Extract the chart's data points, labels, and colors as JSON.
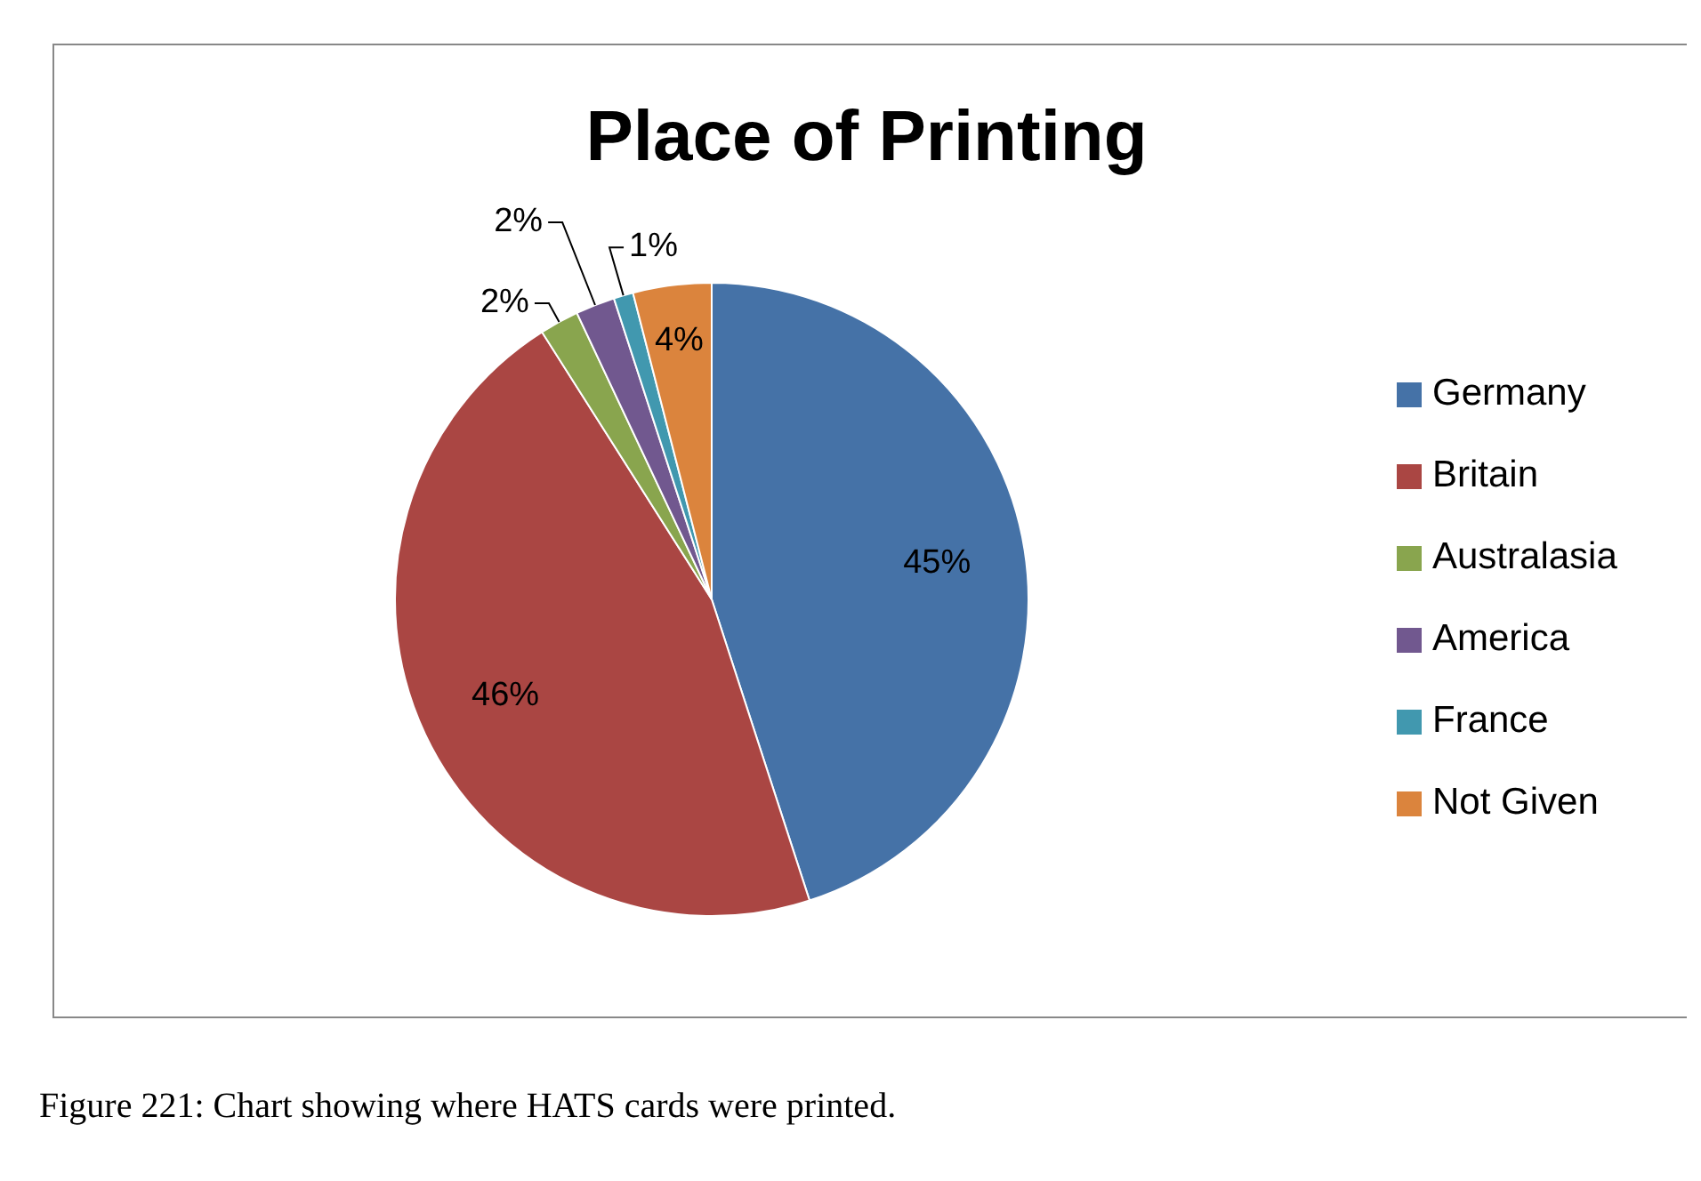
{
  "chart_data": {
    "type": "pie",
    "title": "Place of Printing",
    "categories": [
      "Germany",
      "Britain",
      "Australasia",
      "America",
      "France",
      "Not Given"
    ],
    "values": [
      45,
      46,
      2,
      2,
      1,
      4
    ],
    "colors": [
      "#4572a7",
      "#aa4643",
      "#89a54e",
      "#71588f",
      "#4198af",
      "#db843d"
    ],
    "value_labels": [
      "45%",
      "46%",
      "2%",
      "2%",
      "1%",
      "4%"
    ],
    "legend": "right",
    "annotations": [
      "Figure 221: Chart showing where HATS cards were printed."
    ]
  }
}
